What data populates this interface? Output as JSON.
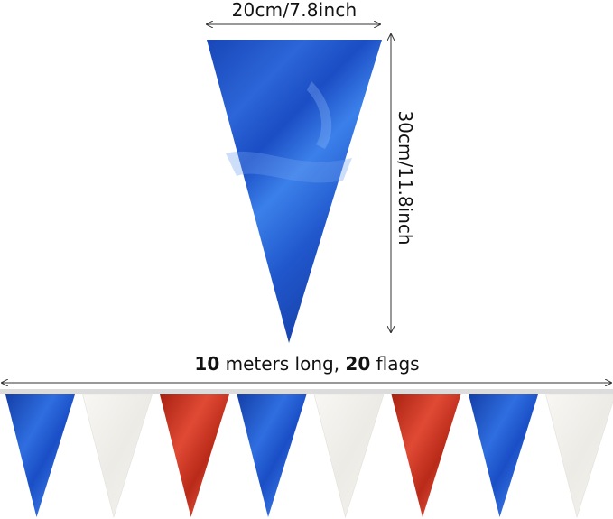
{
  "dimensions": {
    "width_label": "20cm/7.8inch",
    "height_label": "30cm/11.8inch"
  },
  "length_caption": {
    "meters": "10",
    "meters_text": " meters long, ",
    "flags": "20",
    "flags_text": " flags"
  },
  "colors": {
    "blue": "#1f4fc2",
    "red": "#c4301e",
    "white": "#f1efea",
    "string": "#dcdcdc"
  },
  "bunting_sequence": [
    "blue",
    "white",
    "red",
    "blue",
    "white",
    "red",
    "blue",
    "white"
  ]
}
